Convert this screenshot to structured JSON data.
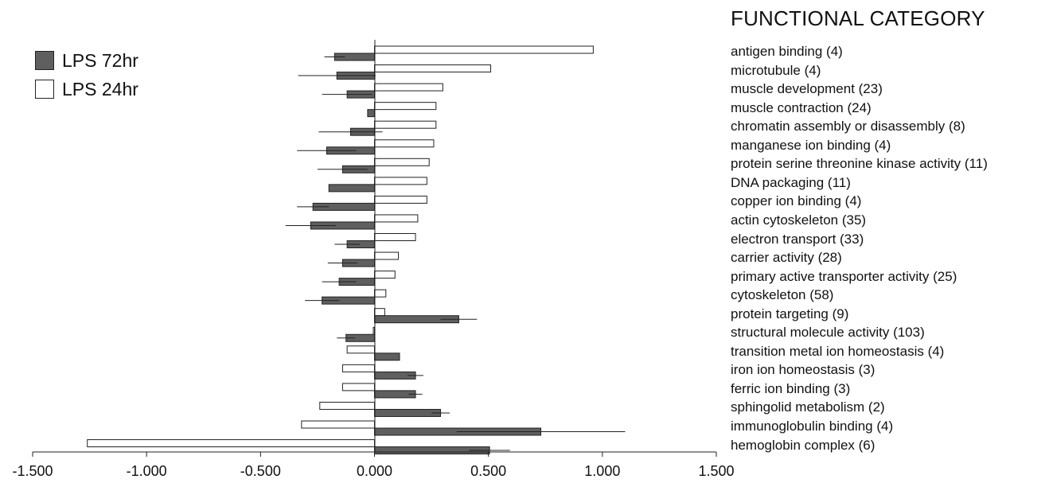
{
  "chart_data": {
    "type": "bar",
    "orientation": "horizontal",
    "category_header": "FUNCTIONAL CATEGORY",
    "categories": [
      "antigen binding (4)",
      "microtubule (4)",
      "muscle development (23)",
      "muscle contraction (24)",
      "chromatin assembly or disassembly (8)",
      "manganese ion binding (4)",
      "protein serine threonine kinase activity (11)",
      "DNA packaging (11)",
      "copper ion binding (4)",
      "actin cytoskeleton (35)",
      "electron transport (33)",
      "carrier activity (28)",
      "primary active transporter activity (25)",
      "cytoskeleton (58)",
      "protein targeting (9)",
      "structural molecule activity (103)",
      "transition metal ion homeostasis (4)",
      "iron ion homeostasis (3)",
      "ferric ion binding (3)",
      "sphingolid metabolism (2)",
      "immunoglobulin binding (4)",
      "hemoglobin complex (6)"
    ],
    "series": [
      {
        "name": "LPS 72hr",
        "color": "#5f5f5f",
        "values": [
          -0.175,
          -0.165,
          -0.12,
          -0.03,
          -0.105,
          -0.21,
          -0.14,
          -0.2,
          -0.27,
          -0.28,
          -0.12,
          -0.14,
          -0.155,
          -0.23,
          0.37,
          -0.125,
          0.11,
          0.18,
          0.18,
          0.29,
          0.73,
          0.505
        ],
        "errors": [
          0.045,
          0.17,
          0.11,
          0.0,
          0.14,
          0.13,
          0.11,
          0.0,
          0.07,
          0.11,
          0.055,
          0.065,
          0.075,
          0.075,
          0.08,
          0.04,
          0.0,
          0.035,
          0.03,
          0.04,
          0.37,
          0.09
        ]
      },
      {
        "name": "LPS 24hr",
        "color": "#ffffff",
        "values": [
          0.96,
          0.51,
          0.3,
          0.27,
          0.27,
          0.26,
          0.24,
          0.23,
          0.23,
          0.19,
          0.18,
          0.105,
          0.09,
          0.05,
          0.045,
          -0.005,
          -0.12,
          -0.14,
          -0.14,
          -0.24,
          -0.32,
          -1.26
        ]
      }
    ],
    "xlim": [
      -1.5,
      1.5
    ],
    "xticks": [
      "-1.500",
      "-1.000",
      "-0.500",
      "0.000",
      "0.500",
      "1.000",
      "1.500"
    ],
    "xlabel": "",
    "ylabel": "",
    "grid": false,
    "legend_position": "top-left"
  }
}
